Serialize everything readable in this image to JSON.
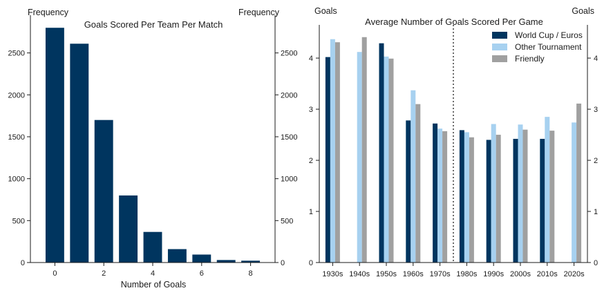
{
  "colors": {
    "world_cup": "#00355f",
    "other": "#a7d1f0",
    "friendly": "#a0a0a0",
    "axis": "#1a1a1a"
  },
  "chart_data": [
    {
      "type": "bar",
      "title": "Goals Scored Per Team Per Match",
      "xlabel": "Number of Goals",
      "ylabel_left": "Frequency",
      "ylabel_right": "Frequency",
      "xlim": [
        -1,
        9
      ],
      "ylim": [
        0,
        2950
      ],
      "xticks": [
        0,
        2,
        4,
        6,
        8
      ],
      "yticks": [
        0,
        500,
        1000,
        1500,
        2000,
        2500
      ],
      "x": [
        0,
        1,
        2,
        3,
        4,
        5,
        6,
        7,
        8
      ],
      "values": [
        2800,
        2610,
        1700,
        800,
        365,
        160,
        95,
        30,
        22
      ]
    },
    {
      "type": "bar",
      "title": "Average Number of Goals Scored Per Game",
      "ylabel_left": "Goals",
      "ylabel_right": "Goals",
      "ylim": [
        0,
        4.65
      ],
      "yticks": [
        0,
        1,
        2,
        3,
        4
      ],
      "categories": [
        "1930s",
        "1940s",
        "1950s",
        "1960s",
        "1970s",
        "1980s",
        "1990s",
        "2000s",
        "2010s",
        "2020s"
      ],
      "divider_after": "1970s",
      "series": [
        {
          "name": "World Cup / Euros",
          "values": [
            4.02,
            null,
            4.29,
            2.78,
            2.72,
            2.59,
            2.4,
            2.42,
            2.42,
            null
          ]
        },
        {
          "name": "Other Tournament",
          "values": [
            4.37,
            4.12,
            4.03,
            3.37,
            2.62,
            2.55,
            2.71,
            2.7,
            2.85,
            2.74
          ]
        },
        {
          "name": "Friendly",
          "values": [
            4.31,
            4.41,
            3.99,
            3.1,
            2.57,
            2.45,
            2.5,
            2.6,
            2.58,
            3.11
          ]
        }
      ]
    }
  ]
}
